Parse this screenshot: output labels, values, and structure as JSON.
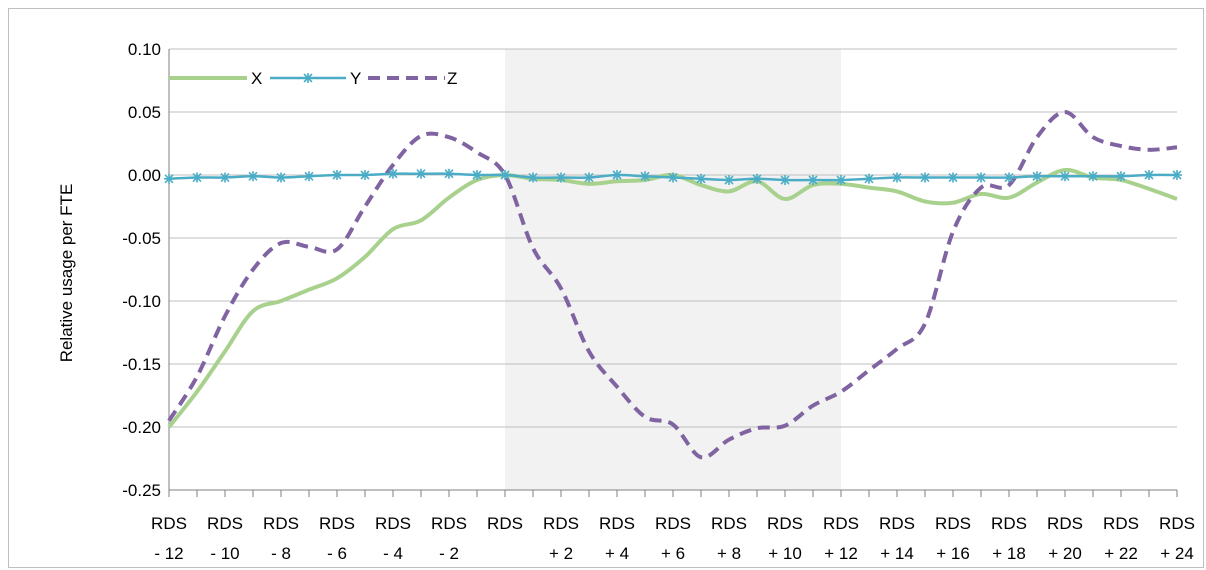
{
  "chart_data": {
    "type": "line",
    "title": "",
    "xlabel": "",
    "ylabel": "Relative usage per FTE",
    "ylim": [
      -0.25,
      0.1
    ],
    "yticks": [
      0.1,
      0.05,
      0.0,
      -0.05,
      -0.1,
      -0.15,
      -0.2,
      -0.25
    ],
    "ytick_labels": [
      "0.10",
      "0.05",
      "0.00",
      "-0.05",
      "-0.10",
      "-0.15",
      "-0.20",
      "-0.25"
    ],
    "grid": true,
    "legend": "top-left",
    "categories": [
      "RDS - 12",
      "RDS - 11",
      "RDS - 10",
      "RDS - 9",
      "RDS - 8",
      "RDS - 7",
      "RDS - 6",
      "RDS - 5",
      "RDS - 4",
      "RDS - 3",
      "RDS - 2",
      "RDS - 1",
      "RDS",
      "RDS + 1",
      "RDS + 2",
      "RDS + 3",
      "RDS + 4",
      "RDS + 5",
      "RDS + 6",
      "RDS + 7",
      "RDS + 8",
      "RDS + 9",
      "RDS + 10",
      "RDS + 11",
      "RDS + 12",
      "RDS + 13",
      "RDS + 14",
      "RDS + 15",
      "RDS + 16",
      "RDS + 17",
      "RDS + 18",
      "RDS + 19",
      "RDS + 20",
      "RDS + 21",
      "RDS + 22",
      "RDS + 23",
      "RDS + 24"
    ],
    "tick_labels": [
      {
        "line1": "RDS",
        "line2": "- 12"
      },
      {
        "line1": "RDS",
        "line2": "- 10"
      },
      {
        "line1": "RDS",
        "line2": "- 8"
      },
      {
        "line1": "RDS",
        "line2": "- 6"
      },
      {
        "line1": "RDS",
        "line2": "- 4"
      },
      {
        "line1": "RDS",
        "line2": "- 2"
      },
      {
        "line1": "RDS",
        "line2": ""
      },
      {
        "line1": "RDS",
        "line2": "+ 2"
      },
      {
        "line1": "RDS",
        "line2": "+ 4"
      },
      {
        "line1": "RDS",
        "line2": "+ 6"
      },
      {
        "line1": "RDS",
        "line2": "+ 8"
      },
      {
        "line1": "RDS",
        "line2": "+ 10"
      },
      {
        "line1": "RDS",
        "line2": "+ 12"
      },
      {
        "line1": "RDS",
        "line2": "+ 14"
      },
      {
        "line1": "RDS",
        "line2": "+ 16"
      },
      {
        "line1": "RDS",
        "line2": "+ 18"
      },
      {
        "line1": "RDS",
        "line2": "+ 20"
      },
      {
        "line1": "RDS",
        "line2": "+ 22"
      },
      {
        "line1": "RDS",
        "line2": "+ 24"
      }
    ],
    "shaded_range": [
      "RDS",
      "RDS + 12"
    ],
    "series": [
      {
        "name": "X",
        "color": "#a9d18e",
        "style": "solid",
        "values": [
          -0.2,
          -0.172,
          -0.14,
          -0.108,
          -0.1,
          -0.091,
          -0.082,
          -0.065,
          -0.043,
          -0.036,
          -0.018,
          -0.004,
          0.0,
          -0.003,
          -0.004,
          -0.007,
          -0.005,
          -0.004,
          0.0,
          -0.008,
          -0.013,
          -0.005,
          -0.019,
          -0.008,
          -0.007,
          -0.01,
          -0.013,
          -0.021,
          -0.022,
          -0.015,
          -0.018,
          -0.006,
          0.004,
          -0.002,
          -0.004,
          -0.011,
          -0.019
        ]
      },
      {
        "name": "Y",
        "color": "#4bacc6",
        "style": "solid-star-markers",
        "values": [
          -0.003,
          -0.002,
          -0.002,
          -0.001,
          -0.002,
          -0.001,
          0.0,
          0.0,
          0.001,
          0.001,
          0.001,
          0.0,
          0.0,
          -0.002,
          -0.002,
          -0.002,
          0.0,
          -0.001,
          -0.002,
          -0.003,
          -0.004,
          -0.003,
          -0.004,
          -0.004,
          -0.004,
          -0.003,
          -0.002,
          -0.002,
          -0.002,
          -0.002,
          -0.002,
          -0.001,
          -0.001,
          -0.001,
          -0.001,
          0.0,
          0.0
        ]
      },
      {
        "name": "Z",
        "color": "#8064a2",
        "style": "dashed",
        "values": [
          -0.195,
          -0.16,
          -0.112,
          -0.075,
          -0.054,
          -0.057,
          -0.059,
          -0.025,
          0.008,
          0.031,
          0.03,
          0.018,
          0.0,
          -0.058,
          -0.09,
          -0.14,
          -0.168,
          -0.192,
          -0.198,
          -0.224,
          -0.21,
          -0.201,
          -0.199,
          -0.183,
          -0.172,
          -0.155,
          -0.138,
          -0.118,
          -0.045,
          -0.01,
          -0.008,
          0.03,
          0.05,
          0.03,
          0.023,
          0.02,
          0.022
        ]
      }
    ]
  }
}
